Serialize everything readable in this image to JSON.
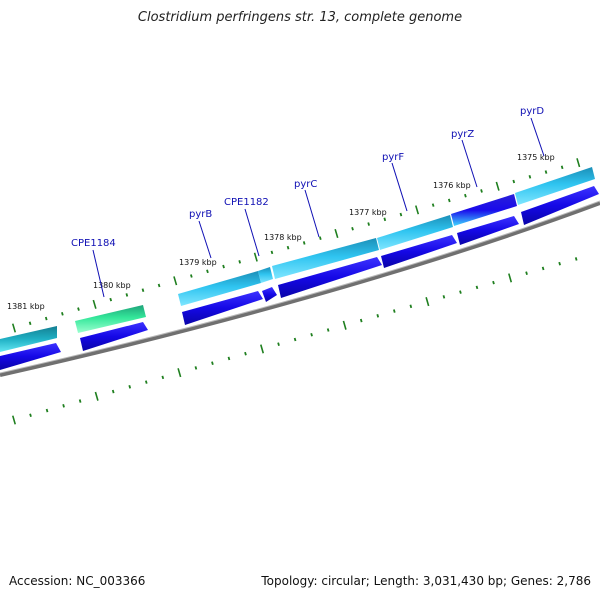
{
  "title": "Clostridium perfringens str. 13, complete genome",
  "accession": "Accession: NC_003366",
  "summary": "Topology: circular; Length: 3,031,430 bp; Genes: 2,786",
  "colors": {
    "backbone": "#7f7f7f",
    "gene_forward": "#1a0aeb",
    "tick_green": "#1f7f1f",
    "label_blue": "#1010b4",
    "feature_cyan": "#29b9ea",
    "feature_teal": "#1a9fb5",
    "feature_green": "#32e696"
  },
  "kbp_labels": [
    "1381 kbp",
    "1380 kbp",
    "1379 kbp",
    "1378 kbp",
    "1377 kbp",
    "1376 kbp",
    "1375 kbp"
  ],
  "gene_labels": [
    "CPE1184",
    "pyrB",
    "CPE1182",
    "pyrC",
    "pyrF",
    "pyrZ",
    "pyrD"
  ]
}
